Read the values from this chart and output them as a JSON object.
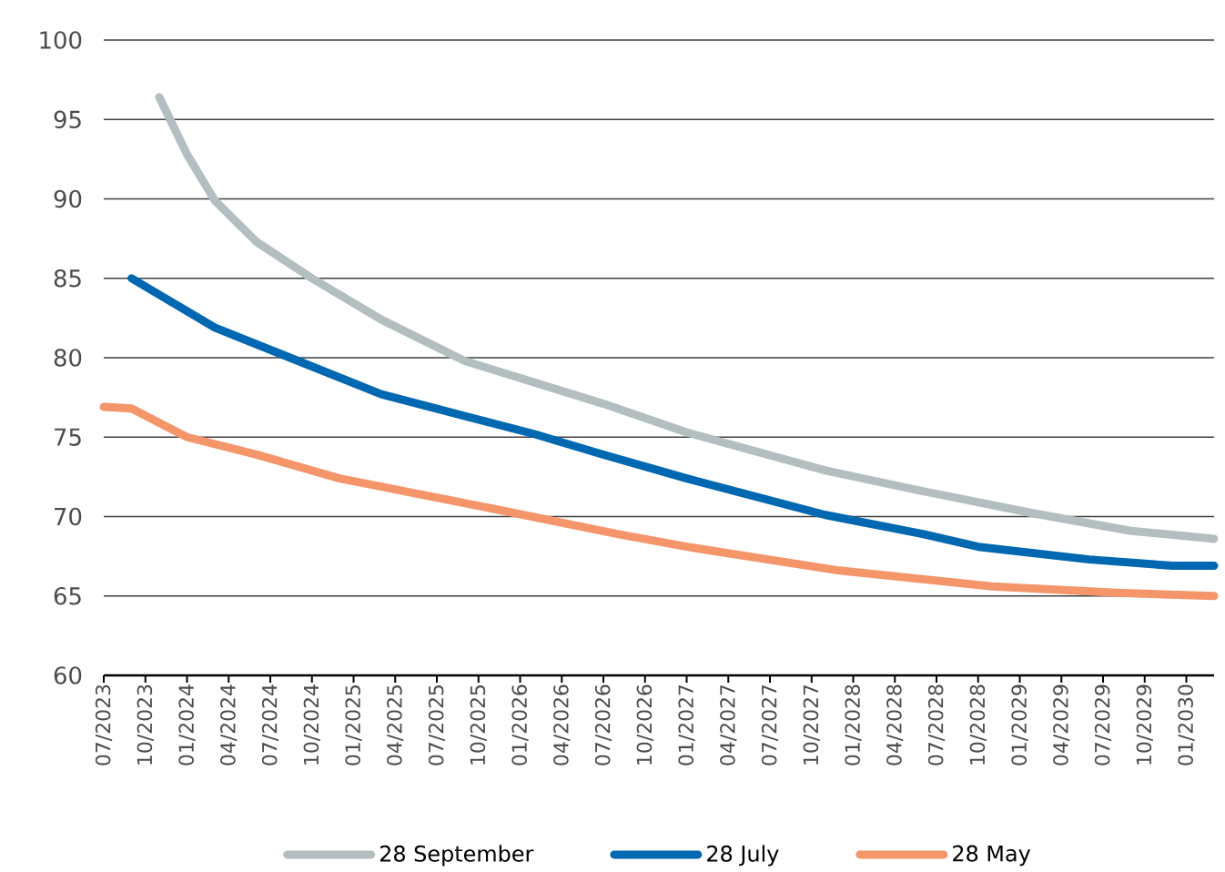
{
  "chart_data": {
    "type": "line",
    "xlim": [
      "2023-07",
      "2030-03"
    ],
    "ylim": [
      60,
      100
    ],
    "yticks": [
      60,
      65,
      70,
      75,
      80,
      85,
      90,
      95,
      100
    ],
    "xticks": [
      {
        "value": "2023-07",
        "label": "07/2023"
      },
      {
        "value": "2023-10",
        "label": "10/2023"
      },
      {
        "value": "2024-01",
        "label": "01/2024"
      },
      {
        "value": "2024-04",
        "label": "04/2024"
      },
      {
        "value": "2024-07",
        "label": "07/2024"
      },
      {
        "value": "2024-10",
        "label": "10/2024"
      },
      {
        "value": "2025-01",
        "label": "01/2025"
      },
      {
        "value": "2025-04",
        "label": "04/2025"
      },
      {
        "value": "2025-07",
        "label": "07/2025"
      },
      {
        "value": "2025-10",
        "label": "10/2025"
      },
      {
        "value": "2026-01",
        "label": "01/2026"
      },
      {
        "value": "2026-04",
        "label": "04/2026"
      },
      {
        "value": "2026-07",
        "label": "07/2026"
      },
      {
        "value": "2026-10",
        "label": "10/2026"
      },
      {
        "value": "2027-01",
        "label": "01/2027"
      },
      {
        "value": "2027-04",
        "label": "04/2027"
      },
      {
        "value": "2027-07",
        "label": "07/2027"
      },
      {
        "value": "2027-10",
        "label": "10/2027"
      },
      {
        "value": "2028-01",
        "label": "01/2028"
      },
      {
        "value": "2028-04",
        "label": "04/2028"
      },
      {
        "value": "2028-07",
        "label": "07/2028"
      },
      {
        "value": "2028-10",
        "label": "10/2028"
      },
      {
        "value": "2029-01",
        "label": "01/2029"
      },
      {
        "value": "2029-04",
        "label": "04/2029"
      },
      {
        "value": "2029-07",
        "label": "07/2029"
      },
      {
        "value": "2029-10",
        "label": "10/2029"
      },
      {
        "value": "2030-01",
        "label": "01/2030"
      }
    ],
    "grid": "y",
    "legend": "bottom",
    "marker": "none",
    "line_style": "solid",
    "series": [
      {
        "name": "28 September",
        "color": "#b3bec0",
        "x": [
          "2023-11",
          "2024-01",
          "2024-03",
          "2024-06",
          "2024-10",
          "2025-03",
          "2025-09",
          "2026-07",
          "2027-01",
          "2027-11",
          "2028-06",
          "2029-02",
          "2029-09",
          "2030-03"
        ],
        "values": [
          96.4,
          92.8,
          89.9,
          87.3,
          85.0,
          82.4,
          79.8,
          77.1,
          75.3,
          72.9,
          71.6,
          70.2,
          69.1,
          68.6
        ]
      },
      {
        "name": "28 July",
        "color": "#0067b1",
        "x": [
          "2023-09",
          "2024-03",
          "2024-09",
          "2025-03",
          "2026-02",
          "2026-07",
          "2027-01",
          "2027-11",
          "2028-06",
          "2028-10",
          "2029-06",
          "2029-12",
          "2030-03"
        ],
        "values": [
          85.0,
          81.9,
          79.8,
          77.7,
          75.2,
          73.9,
          72.4,
          70.1,
          68.9,
          68.1,
          67.3,
          66.9,
          66.9
        ]
      },
      {
        "name": "28 May",
        "color": "#f4956a",
        "x": [
          "2023-07",
          "2023-09",
          "2024-01",
          "2024-06",
          "2024-12",
          "2025-11",
          "2026-08",
          "2027-01",
          "2027-12",
          "2028-11",
          "2029-08",
          "2030-03"
        ],
        "values": [
          76.9,
          76.8,
          75.0,
          73.9,
          72.4,
          70.5,
          68.9,
          68.1,
          66.6,
          65.6,
          65.2,
          65.0
        ]
      }
    ]
  }
}
